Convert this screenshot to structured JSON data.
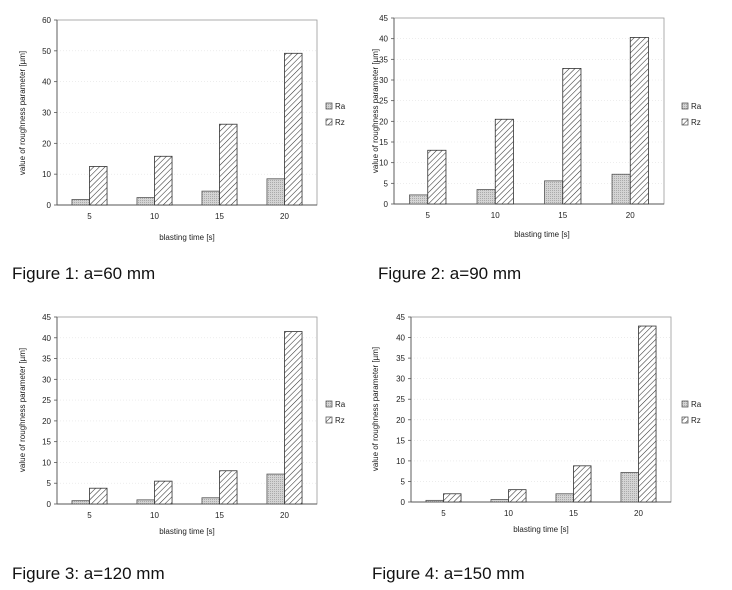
{
  "chart_data": [
    {
      "type": "bar",
      "caption": "Figure 1: a=60 mm",
      "categories": [
        "5",
        "10",
        "15",
        "20"
      ],
      "series": [
        {
          "name": "Ra",
          "values": [
            1.8,
            2.4,
            4.5,
            8.5
          ]
        },
        {
          "name": "Rz",
          "values": [
            12.5,
            15.8,
            26.2,
            49.2
          ]
        }
      ],
      "xlabel": "blasting time [s]",
      "ylabel": "value of roughness parameter [µm]",
      "ylim": [
        0,
        60
      ],
      "yticks": [
        "0",
        "10",
        "20",
        "30",
        "40",
        "50",
        "60"
      ],
      "legend": "right"
    },
    {
      "type": "bar",
      "caption": "Figure 2: a=90 mm",
      "categories": [
        "5",
        "10",
        "15",
        "20"
      ],
      "series": [
        {
          "name": "Ra",
          "values": [
            2.2,
            3.5,
            5.6,
            7.2
          ]
        },
        {
          "name": "Rz",
          "values": [
            13.0,
            20.5,
            32.8,
            40.3
          ]
        }
      ],
      "xlabel": "blasting time [s]",
      "ylabel": "value of roughness parameter [µm]",
      "ylim": [
        0,
        45
      ],
      "yticks": [
        "0",
        "5",
        "10",
        "15",
        "20",
        "25",
        "30",
        "35",
        "40",
        "45"
      ],
      "legend": "right"
    },
    {
      "type": "bar",
      "caption": "Figure 3: a=120 mm",
      "categories": [
        "5",
        "10",
        "15",
        "20"
      ],
      "series": [
        {
          "name": "Ra",
          "values": [
            0.8,
            1.0,
            1.5,
            7.2
          ]
        },
        {
          "name": "Rz",
          "values": [
            3.8,
            5.5,
            8.0,
            41.5
          ]
        }
      ],
      "xlabel": "blasting time [s]",
      "ylabel": "value of roughness parameter [µm]",
      "ylim": [
        0,
        45
      ],
      "yticks": [
        "0",
        "5",
        "10",
        "15",
        "20",
        "25",
        "30",
        "35",
        "40",
        "45"
      ],
      "legend": "right"
    },
    {
      "type": "bar",
      "caption": "Figure 4: a=150 mm",
      "categories": [
        "5",
        "10",
        "15",
        "20"
      ],
      "series": [
        {
          "name": "Ra",
          "values": [
            0.4,
            0.6,
            2.0,
            7.2
          ]
        },
        {
          "name": "Rz",
          "values": [
            2.0,
            3.0,
            8.8,
            42.8
          ]
        }
      ],
      "xlabel": "blasting time [s]",
      "ylabel": "value of roughness parameter [µm]",
      "ylim": [
        0,
        45
      ],
      "yticks": [
        "0",
        "5",
        "10",
        "15",
        "20",
        "25",
        "30",
        "35",
        "40",
        "45"
      ],
      "legend": "right"
    }
  ],
  "colors": {
    "ra_fill": "#d4d4d4",
    "rz_fill": "#ffffff",
    "hatch": "#333333",
    "axis": "#555555",
    "frame": "#9a9a9a"
  }
}
